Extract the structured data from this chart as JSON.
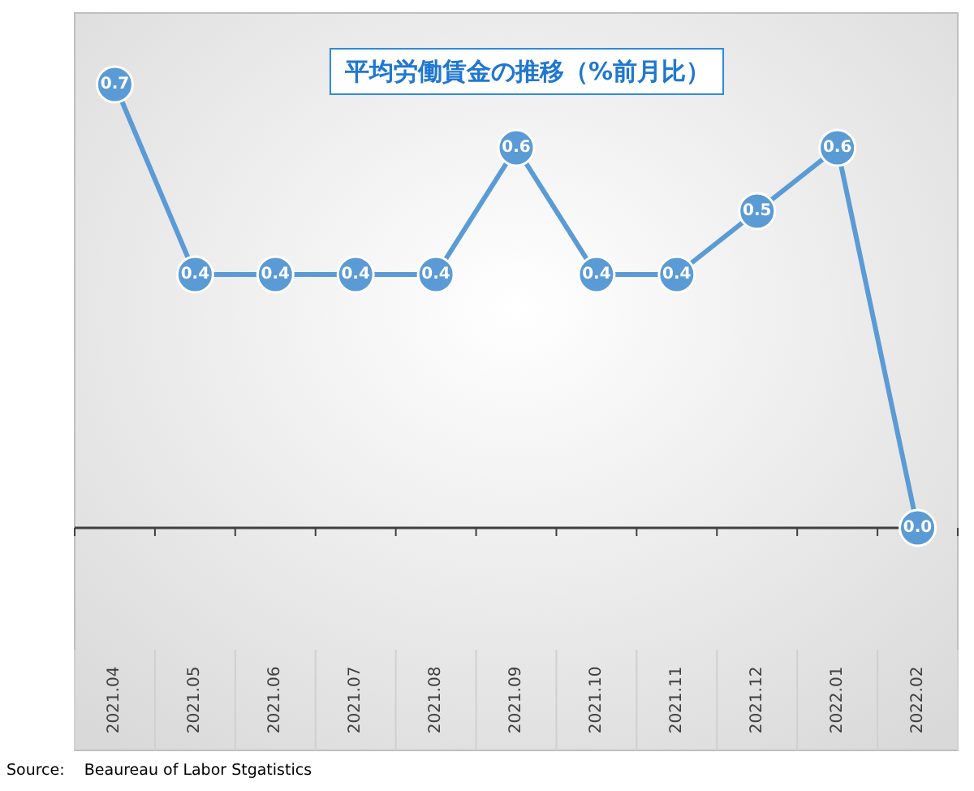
{
  "chart_data": {
    "type": "line",
    "title": "平均労働賃金の推移（%前月比）",
    "categories": [
      "2021.04",
      "2021.05",
      "2021.06",
      "2021.07",
      "2021.08",
      "2021.09",
      "2021.10",
      "2021.11",
      "2021.12",
      "2022.01",
      "2022.02"
    ],
    "series": [
      {
        "color": "#5b9bd5",
        "values": [
          0.7,
          0.4,
          0.4,
          0.4,
          0.4,
          0.6,
          0.4,
          0.4,
          0.5,
          0.6,
          0.0
        ],
        "value_labels": [
          "0.7",
          "0.4",
          "0.4",
          "0.4",
          "0.4",
          "0.6",
          "0.4",
          "0.4",
          "0.5",
          "0.6",
          "0.0"
        ]
      }
    ],
    "marker": "circle",
    "line_style": "solid",
    "annotations": [
      "Source:    Beaureau of Labor Stgatistics"
    ]
  }
}
